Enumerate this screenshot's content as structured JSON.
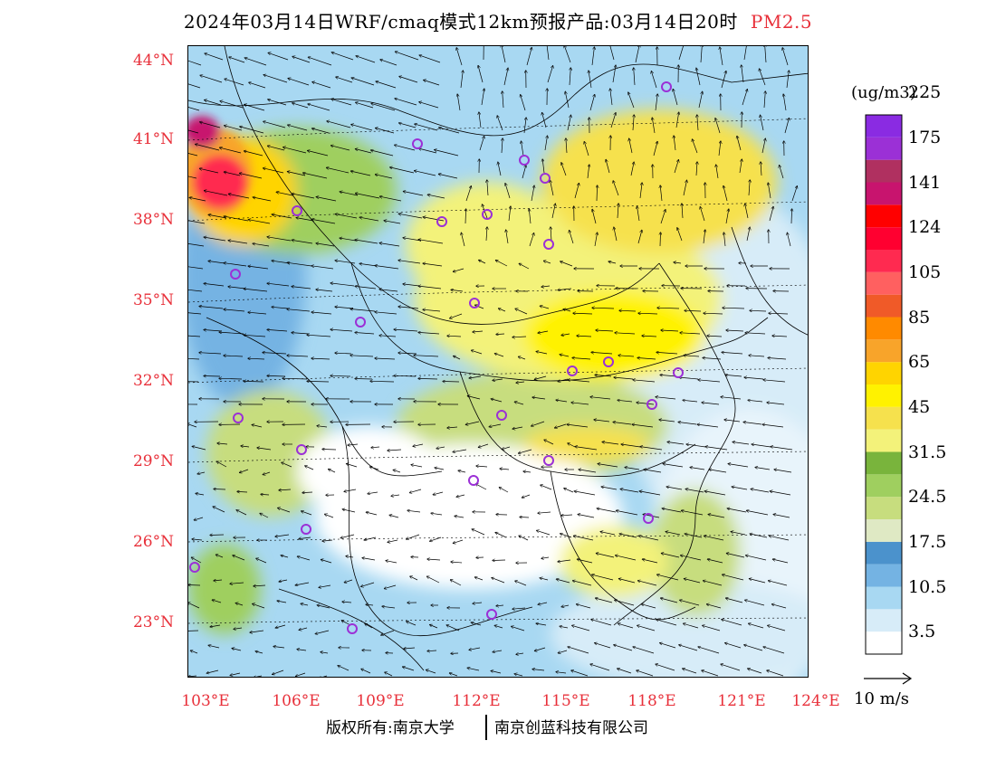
{
  "title": {
    "main": "2024年03月14日WRF/cmaq模式12km预报产品:03月14日20时",
    "product": "PM2.5"
  },
  "map": {
    "lat_labels": [
      "44°N",
      "41°N",
      "38°N",
      "35°N",
      "32°N",
      "29°N",
      "26°N",
      "23°N"
    ],
    "lon_labels": [
      "103°E",
      "106°E",
      "109°E",
      "112°E",
      "115°E",
      "118°E",
      "121°E",
      "124°E"
    ],
    "station_marker_color": "#9b30d6"
  },
  "colorbar": {
    "unit": "(ug/m3)",
    "colors": [
      "#ffffff",
      "#d7ecf8",
      "#a8d8f2",
      "#74b3e3",
      "#4b92cc",
      "#dfe9c4",
      "#c7dd7e",
      "#9fcf5f",
      "#79b43c",
      "#f3f27a",
      "#f6e14d",
      "#fff200",
      "#ffd400",
      "#f8a42a",
      "#ff8a00",
      "#f05a28",
      "#ff6060",
      "#ff2a50",
      "#ff0030",
      "#ff0000",
      "#c8146e",
      "#b03060",
      "#9b30d6",
      "#8a2be2"
    ],
    "labels": [
      "3.5",
      "10.5",
      "17.5",
      "24.5",
      "31.5",
      "45",
      "65",
      "85",
      "105",
      "124",
      "141",
      "175",
      "225"
    ]
  },
  "wind_reference": {
    "label": "10 m/s"
  },
  "footer": {
    "copyright_a": "版权所有:南京大学",
    "copyright_b": "南京创蓝科技有限公司"
  }
}
